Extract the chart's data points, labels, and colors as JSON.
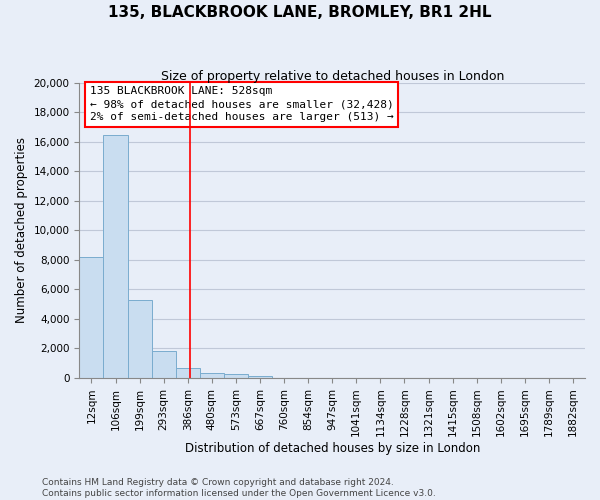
{
  "title": "135, BLACKBROOK LANE, BROMLEY, BR1 2HL",
  "subtitle": "Size of property relative to detached houses in London",
  "xlabel": "Distribution of detached houses by size in London",
  "ylabel": "Number of detached properties",
  "bar_color": "#c9ddf0",
  "bar_edge_color": "#7aacce",
  "bin_labels": [
    "12sqm",
    "106sqm",
    "199sqm",
    "293sqm",
    "386sqm",
    "480sqm",
    "573sqm",
    "667sqm",
    "760sqm",
    "854sqm",
    "947sqm",
    "1041sqm",
    "1134sqm",
    "1228sqm",
    "1321sqm",
    "1415sqm",
    "1508sqm",
    "1602sqm",
    "1695sqm",
    "1789sqm",
    "1882sqm"
  ],
  "bar_heights": [
    8200,
    16500,
    5300,
    1850,
    700,
    340,
    240,
    130,
    0,
    0,
    0,
    0,
    0,
    0,
    0,
    0,
    0,
    0,
    0,
    0,
    0
  ],
  "ylim": [
    0,
    20000
  ],
  "yticks": [
    0,
    2000,
    4000,
    6000,
    8000,
    10000,
    12000,
    14000,
    16000,
    18000,
    20000
  ],
  "property_line_x": 4.6,
  "annotation_title": "135 BLACKBROOK LANE: 528sqm",
  "annotation_line1": "← 98% of detached houses are smaller (32,428)",
  "annotation_line2": "2% of semi-detached houses are larger (513) →",
  "footer_line1": "Contains HM Land Registry data © Crown copyright and database right 2024.",
  "footer_line2": "Contains public sector information licensed under the Open Government Licence v3.0.",
  "background_color": "#e8eef8",
  "grid_color": "#c0c8d8",
  "title_fontsize": 11,
  "subtitle_fontsize": 9,
  "axis_label_fontsize": 8.5,
  "tick_fontsize": 7.5,
  "annotation_fontsize": 8,
  "footer_fontsize": 6.5
}
